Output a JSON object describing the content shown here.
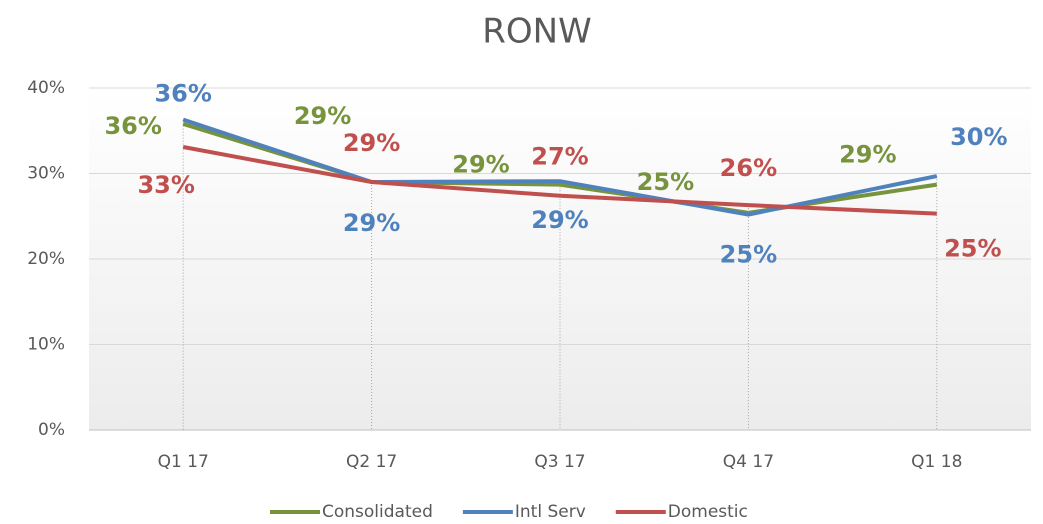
{
  "chart_data": {
    "type": "line",
    "title": "RONW",
    "categories": [
      "Q1 17",
      "Q2 17",
      "Q3 17",
      "Q4 17",
      "Q1 18"
    ],
    "series": [
      {
        "name": "Consolidated",
        "color": "#77933c",
        "values": [
          35.8,
          29.0,
          28.7,
          25.4,
          28.7
        ],
        "value_labels": [
          "36%",
          "29%",
          "29%",
          "25%",
          "29%"
        ]
      },
      {
        "name": "Intl Serv",
        "color": "#4f81bd",
        "values": [
          36.3,
          29.0,
          29.1,
          25.2,
          29.7
        ],
        "value_labels": [
          "36%",
          "29%",
          "29%",
          "25%",
          "30%"
        ]
      },
      {
        "name": "Domestic",
        "color": "#c0504d",
        "values": [
          33.1,
          29.0,
          27.4,
          26.3,
          25.3
        ],
        "value_labels": [
          "33%",
          "29%",
          "27%",
          "26%",
          "25%"
        ]
      }
    ],
    "ylim": [
      0,
      40
    ],
    "yticks": [
      {
        "value": 0,
        "label": "0%"
      },
      {
        "value": 10,
        "label": "10%"
      },
      {
        "value": 20,
        "label": "20%"
      },
      {
        "value": 30,
        "label": "30%"
      },
      {
        "value": 40,
        "label": "40%"
      }
    ],
    "grid": true,
    "legend": "bottom"
  }
}
